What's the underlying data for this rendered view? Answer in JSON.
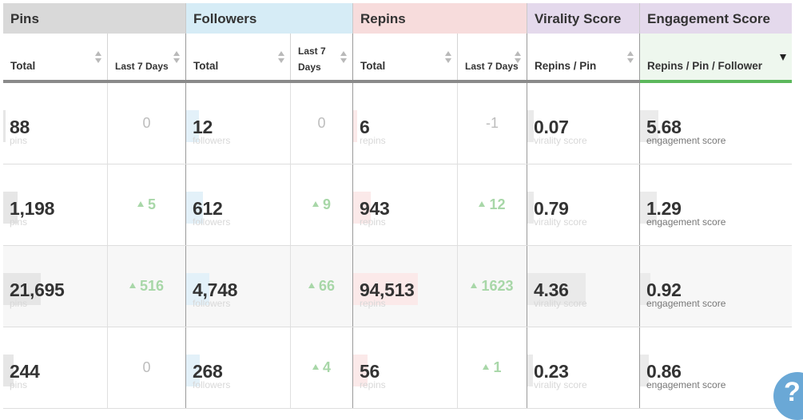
{
  "groups": {
    "pins": "Pins",
    "followers": "Followers",
    "repins": "Repins",
    "virality": "Virality Score",
    "engagement": "Engagement Score"
  },
  "columns": {
    "pins_total": "Total",
    "pins_last7": "Last 7 Days",
    "followers_total": "Total",
    "followers_last7_line1": "Last 7",
    "followers_last7_line2": "Days",
    "repins_total": "Total",
    "repins_last7": "Last 7 Days",
    "virality": "Repins / Pin",
    "engagement": "Repins / Pin / Follower"
  },
  "sublabels": {
    "pins": "pins",
    "followers": "followers",
    "repins": "repins",
    "virality": "virality score",
    "engagement": "engagement score"
  },
  "rows": [
    {
      "pins": "88",
      "pins_delta": "0",
      "followers": "12",
      "followers_delta": "0",
      "repins": "6",
      "repins_delta": "-1",
      "virality": "0.07",
      "engagement": "5.68",
      "bars": {
        "pins": 0.02,
        "followers": 0.12,
        "repins": 0.04,
        "virality": 0.06,
        "engagement": 0.12
      }
    },
    {
      "pins": "1,198",
      "pins_delta": "5",
      "followers": "612",
      "followers_delta": "9",
      "repins": "943",
      "repins_delta": "12",
      "virality": "0.79",
      "engagement": "1.29",
      "bars": {
        "pins": 0.14,
        "followers": 0.16,
        "repins": 0.17,
        "virality": 0.06,
        "engagement": 0.11
      }
    },
    {
      "pins": "21,695",
      "pins_delta": "516",
      "followers": "4,748",
      "followers_delta": "66",
      "repins": "94,513",
      "repins_delta": "1623",
      "virality": "4.36",
      "engagement": "0.92",
      "bars": {
        "pins": 0.36,
        "followers": 0.22,
        "repins": 0.62,
        "virality": 0.52,
        "engagement": 0.07
      }
    },
    {
      "pins": "244",
      "pins_delta": "0",
      "followers": "268",
      "followers_delta": "4",
      "repins": "56",
      "repins_delta": "1",
      "virality": "0.23",
      "engagement": "0.86",
      "bars": {
        "pins": 0.1,
        "followers": 0.13,
        "repins": 0.14,
        "virality": 0.05,
        "engagement": 0.06
      }
    }
  ],
  "help_label": "?",
  "colors": {
    "positive": "#a8d7a8",
    "neutral": "#bdbdbd",
    "sort_active": "#5cb85c"
  }
}
